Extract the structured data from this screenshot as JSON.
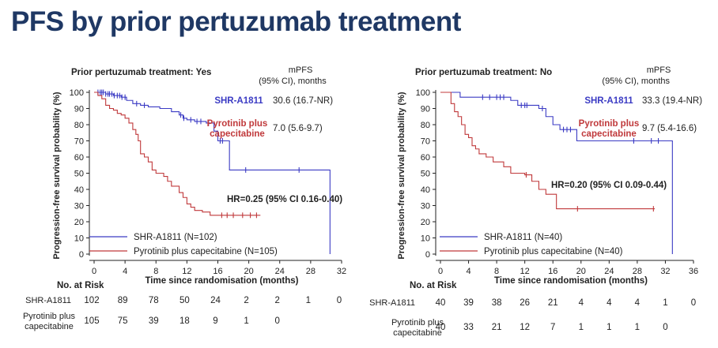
{
  "slide": {
    "title": "PFS by prior pertuzumab treatment"
  },
  "colors": {
    "title": "#1f3864",
    "shr": "#3b3bc4",
    "pyro": "#c0393b",
    "axis": "#222222"
  },
  "risk_label": "No. at Risk",
  "chart_data": [
    {
      "type": "line",
      "subtype": "kaplan-meier",
      "panel_title": "Prior pertuzumab treatment: Yes",
      "xlabel": "Time since randomisation (months)",
      "ylabel": "Progression-free survival probability (%)",
      "xlim": [
        0,
        32
      ],
      "ylim": [
        0,
        100
      ],
      "xticks": [
        0,
        4,
        8,
        12,
        16,
        20,
        24,
        28,
        32
      ],
      "yticks": [
        0,
        10,
        20,
        30,
        40,
        50,
        60,
        70,
        80,
        90,
        100
      ],
      "mpfs_header": [
        "mPFS",
        "(95% CI), months"
      ],
      "hr_text": "HR=0.25 (95% CI 0.16-0.40)",
      "series": [
        {
          "name": "SHR-A1811",
          "legend": "SHR-A1811 (N=102)",
          "color": "#3b3bc4",
          "mpfs_name": [
            "SHR-A1811"
          ],
          "mpfs": "30.6 (16.7-NR)",
          "steps": [
            [
              0,
              100
            ],
            [
              1.5,
              99
            ],
            [
              2.5,
              98
            ],
            [
              3.5,
              97
            ],
            [
              4.2,
              95
            ],
            [
              5,
              93
            ],
            [
              6,
              92
            ],
            [
              7,
              91
            ],
            [
              8.5,
              90
            ],
            [
              10,
              88
            ],
            [
              11,
              86
            ],
            [
              11.5,
              84
            ],
            [
              12,
              83
            ],
            [
              13,
              82
            ],
            [
              14.5,
              81
            ],
            [
              15.5,
              76
            ],
            [
              16,
              70
            ],
            [
              17,
              70
            ],
            [
              17.5,
              52
            ],
            [
              30.5,
              52
            ],
            [
              30.5,
              0
            ]
          ],
          "censor_times": [
            0.5,
            0.8,
            1,
            1.2,
            1.5,
            1.8,
            2,
            2.3,
            2.6,
            3,
            3.3,
            3.6,
            4,
            5.5,
            6.5,
            11.2,
            11.6,
            12.5,
            13.3,
            13.8,
            14.8,
            16.3,
            16.6,
            19.6,
            26.5
          ]
        },
        {
          "name": "Pyrotinib plus capecitabine",
          "legend": "Pyrotinib plus capecitabine (N=105)",
          "color": "#c0393b",
          "mpfs_name": [
            "Pyrotinib plus",
            "capecitabine"
          ],
          "mpfs": "7.0 (5.6-9.7)",
          "steps": [
            [
              0,
              100
            ],
            [
              0.5,
              98
            ],
            [
              1,
              96
            ],
            [
              1.5,
              92
            ],
            [
              2,
              90
            ],
            [
              2.5,
              89
            ],
            [
              3,
              87
            ],
            [
              3.5,
              86
            ],
            [
              4,
              84
            ],
            [
              4.5,
              81
            ],
            [
              5,
              77
            ],
            [
              5.4,
              74
            ],
            [
              5.7,
              70
            ],
            [
              6,
              62
            ],
            [
              6.5,
              60
            ],
            [
              7,
              57
            ],
            [
              7.5,
              52
            ],
            [
              8,
              50
            ],
            [
              9,
              48
            ],
            [
              9.5,
              45
            ],
            [
              10,
              42
            ],
            [
              11,
              38
            ],
            [
              11.5,
              35
            ],
            [
              12,
              31
            ],
            [
              12.5,
              29
            ],
            [
              13,
              27
            ],
            [
              14,
              26
            ],
            [
              15,
              24
            ],
            [
              21.5,
              24
            ]
          ],
          "censor_times": [
            16.5,
            17.2,
            18,
            19.2,
            20.2,
            21
          ]
        }
      ],
      "risk_table": [
        {
          "label": [
            "SHR-A1811"
          ],
          "values": [
            "102",
            "89",
            "78",
            "50",
            "24",
            "2",
            "2",
            "1",
            "0"
          ]
        },
        {
          "label": [
            "Pyrotinib plus",
            "capecitabine"
          ],
          "values": [
            "105",
            "75",
            "39",
            "18",
            "9",
            "1",
            "0"
          ]
        }
      ]
    },
    {
      "type": "line",
      "subtype": "kaplan-meier",
      "panel_title": "Prior pertuzumab treatment: No",
      "xlabel": "Time since randomisation (months)",
      "ylabel": "Progression-free survival probability (%)",
      "xlim": [
        0,
        36
      ],
      "ylim": [
        0,
        100
      ],
      "xticks": [
        0,
        4,
        8,
        12,
        16,
        20,
        24,
        28,
        32,
        36
      ],
      "yticks": [
        0,
        10,
        20,
        30,
        40,
        50,
        60,
        70,
        80,
        90,
        100
      ],
      "mpfs_header": [
        "mPFS",
        "(95% CI), months"
      ],
      "hr_text": "HR=0.20 (95% CI 0.09-0.44)",
      "series": [
        {
          "name": "SHR-A1811",
          "legend": "SHR-A1811 (N=40)",
          "color": "#3b3bc4",
          "mpfs_name": [
            "SHR-A1811"
          ],
          "mpfs": "33.3 (19.4-NR)",
          "steps": [
            [
              0,
              100
            ],
            [
              2.8,
              97
            ],
            [
              10,
              95
            ],
            [
              11,
              92
            ],
            [
              14,
              90
            ],
            [
              15,
              85
            ],
            [
              16,
              80
            ],
            [
              17,
              77
            ],
            [
              19.4,
              70
            ],
            [
              33,
              70
            ],
            [
              33,
              0
            ]
          ],
          "censor_times": [
            6,
            7,
            8,
            8.5,
            9,
            11.5,
            12,
            12.3,
            14.5,
            17.5,
            18,
            18.5,
            27.5,
            30,
            31
          ]
        },
        {
          "name": "Pyrotinib plus capecitabine",
          "legend": "Pyrotinib plus capecitabine (N=40)",
          "color": "#c0393b",
          "mpfs_name": [
            "Pyrotinib plus",
            "capecitabine"
          ],
          "mpfs": "9.7 (5.4-16.6)",
          "steps": [
            [
              0,
              100
            ],
            [
              1.5,
              93
            ],
            [
              2,
              88
            ],
            [
              2.5,
              85
            ],
            [
              3,
              80
            ],
            [
              3.5,
              74
            ],
            [
              4,
              72
            ],
            [
              4.5,
              67
            ],
            [
              5,
              65
            ],
            [
              5.5,
              62
            ],
            [
              6.5,
              60
            ],
            [
              7.5,
              57
            ],
            [
              9,
              54
            ],
            [
              10,
              50
            ],
            [
              12,
              49
            ],
            [
              13,
              45
            ],
            [
              14,
              40
            ],
            [
              15,
              37
            ],
            [
              16.5,
              28
            ],
            [
              30.5,
              28
            ]
          ],
          "censor_times": [
            12.2,
            19.5,
            30.3
          ]
        }
      ],
      "risk_table": [
        {
          "label": [
            "SHR-A1811"
          ],
          "values": [
            "40",
            "39",
            "38",
            "26",
            "21",
            "4",
            "4",
            "4",
            "1",
            "0"
          ]
        },
        {
          "label": [
            "Pyrotinib plus",
            "capecitabine"
          ],
          "values": [
            "40",
            "33",
            "21",
            "12",
            "7",
            "1",
            "1",
            "1",
            "0"
          ]
        }
      ]
    }
  ]
}
